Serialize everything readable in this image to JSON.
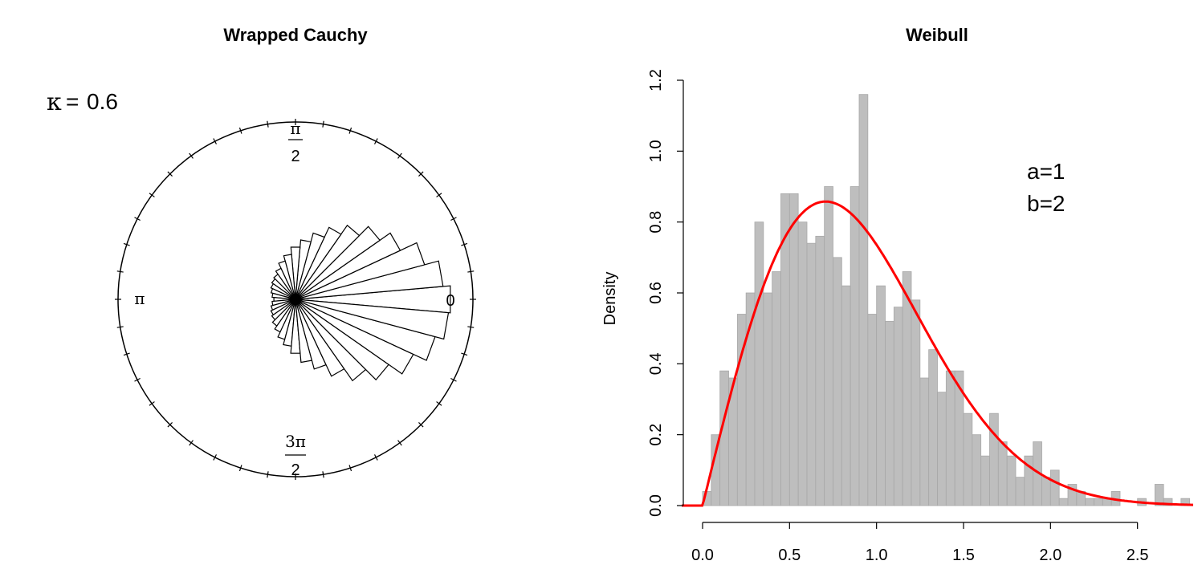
{
  "chart_data": [
    {
      "type": "rose",
      "title": "Wrapped Cauchy",
      "annotation": {
        "symbol": "κ",
        "equals": "=",
        "value": "0.6"
      },
      "axis_labels": {
        "zero": "0",
        "pi": "π",
        "pi_over_2": {
          "num": "π",
          "den": "2"
        },
        "three_pi_over_2": {
          "num": "3π",
          "den": "2"
        }
      },
      "bins": 36,
      "bin_radii": [
        0.86,
        0.82,
        0.74,
        0.64,
        0.57,
        0.5,
        0.44,
        0.38,
        0.33,
        0.29,
        0.25,
        0.22,
        0.19,
        0.17,
        0.16,
        0.15,
        0.14,
        0.13,
        0.12,
        0.13,
        0.14,
        0.15,
        0.16,
        0.18,
        0.2,
        0.23,
        0.26,
        0.3,
        0.35,
        0.4,
        0.47,
        0.55,
        0.63,
        0.72,
        0.8,
        0.85
      ]
    },
    {
      "type": "histogram",
      "title": "Weibull",
      "xlabel": "",
      "ylabel": "Density",
      "xlim": [
        -0.12,
        2.82
      ],
      "ylim": [
        0,
        1.2
      ],
      "x_ticks": [
        "0.0",
        "0.5",
        "1.0",
        "1.5",
        "2.0",
        "2.5"
      ],
      "y_ticks": [
        "0.0",
        "0.2",
        "0.4",
        "0.6",
        "0.8",
        "1.0",
        "1.2"
      ],
      "bin_width": 0.05,
      "bin_start": 0.0,
      "densities": [
        0.04,
        0.2,
        0.38,
        0.36,
        0.54,
        0.6,
        0.8,
        0.6,
        0.66,
        0.88,
        0.88,
        0.8,
        0.74,
        0.76,
        0.9,
        0.7,
        0.62,
        0.9,
        1.16,
        0.54,
        0.62,
        0.52,
        0.56,
        0.66,
        0.58,
        0.36,
        0.44,
        0.32,
        0.38,
        0.38,
        0.26,
        0.2,
        0.14,
        0.26,
        0.18,
        0.14,
        0.08,
        0.14,
        0.18,
        0.08,
        0.1,
        0.02,
        0.06,
        0.04,
        0.02,
        0.02,
        0.02,
        0.04,
        0.0,
        0.0,
        0.02,
        0.0,
        0.06,
        0.02,
        0.0,
        0.02
      ],
      "bar_color": "#bebebe",
      "curve": {
        "name": "Weibull density",
        "color": "#ff0000",
        "shape": 2,
        "scale": 1
      },
      "annotation": [
        "a=1",
        "b=2"
      ]
    }
  ]
}
